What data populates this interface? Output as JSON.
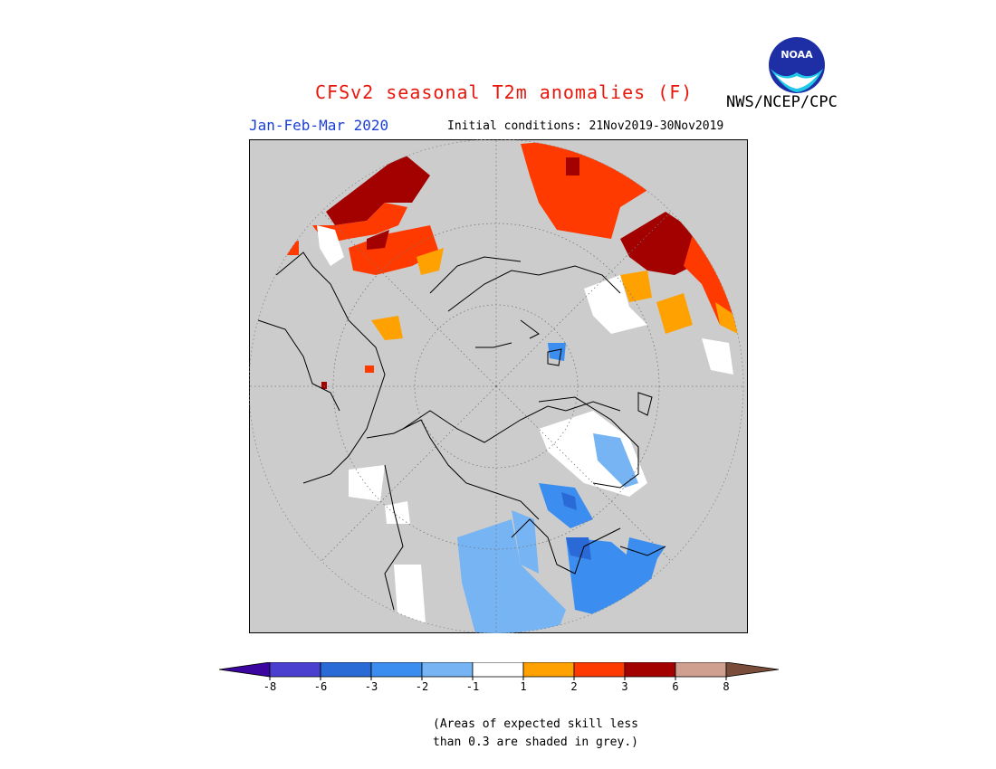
{
  "header": {
    "title": "CFSv2 seasonal T2m anomalies (F)",
    "agency": "NWS/NCEP/CPC",
    "period": "Jan-Feb-Mar 2020",
    "initial_conditions": "Initial conditions: 21Nov2019-30Nov2019"
  },
  "logo": {
    "text": "NOAA",
    "icon": "noaa-logo"
  },
  "legend": {
    "ticks": [
      "-8",
      "-6",
      "-3",
      "-2",
      "-1",
      "1",
      "2",
      "3",
      "6",
      "8"
    ],
    "colors": [
      "#3b06a0",
      "#4b3fcf",
      "#2a6ad6",
      "#3b8ef0",
      "#76b4f4",
      "#ffffff",
      "#ffa100",
      "#ff3a00",
      "#a30000",
      "#cfa090",
      "#7a4d3a"
    ]
  },
  "note": {
    "line1": "(Areas of expected skill less",
    "line2": "than 0.3 are shaded in grey.)"
  }
}
